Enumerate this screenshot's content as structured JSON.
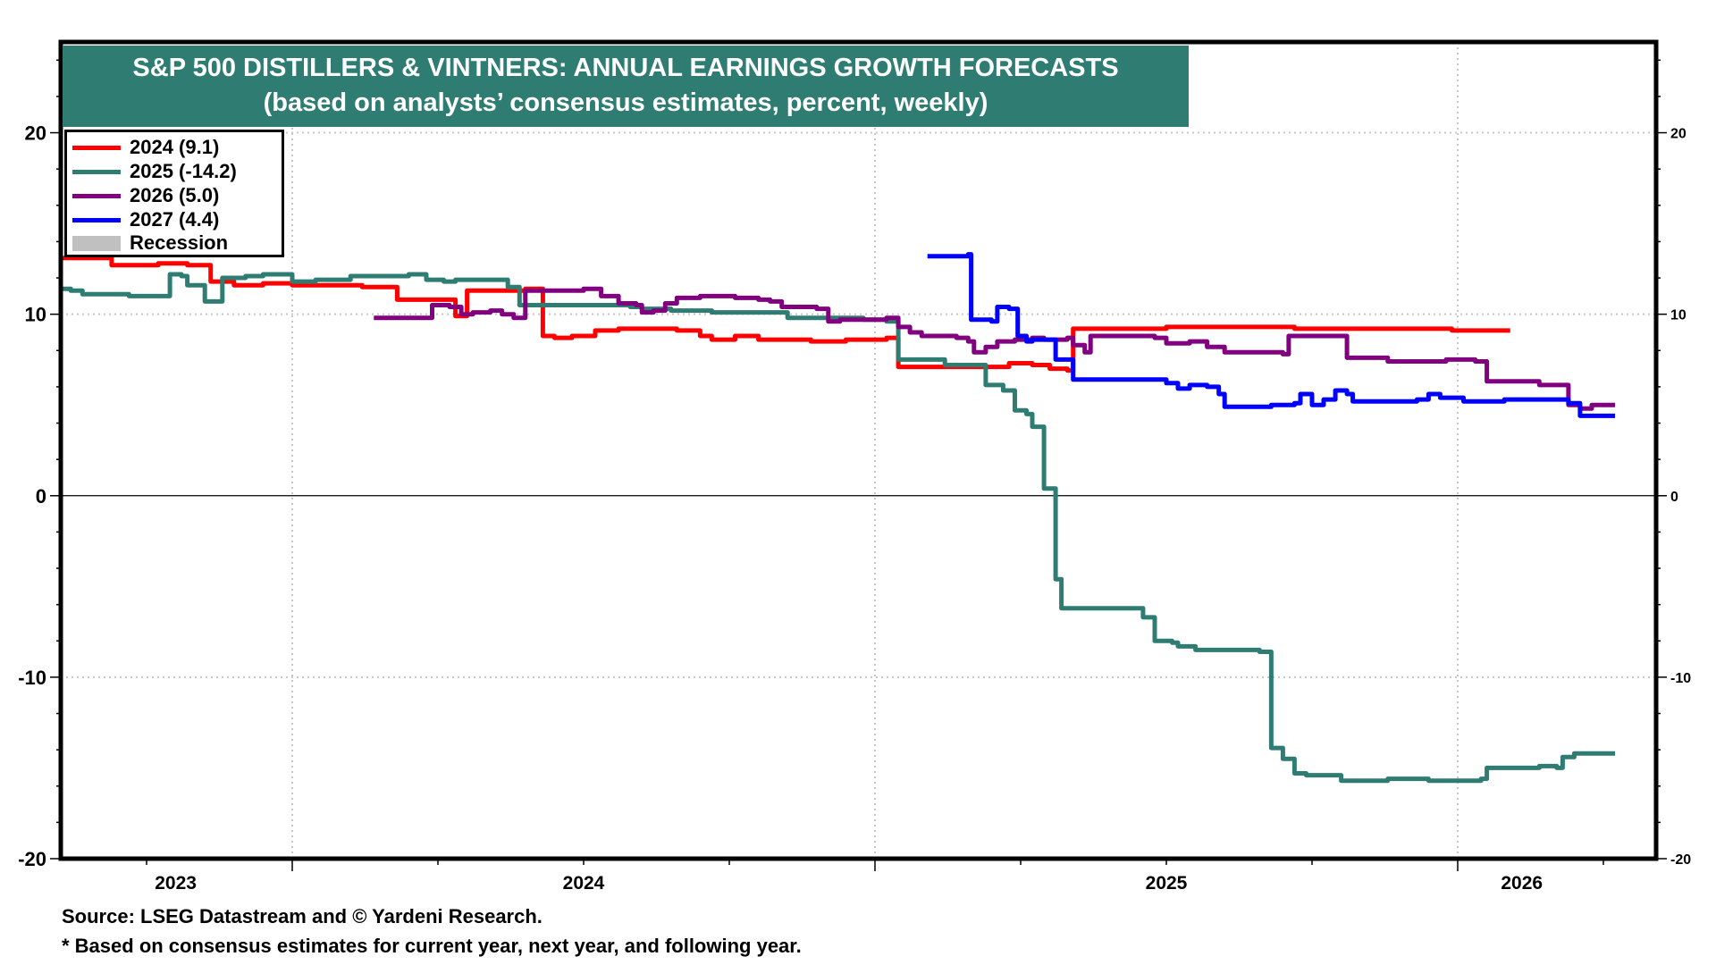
{
  "chart_data": {
    "type": "line",
    "title": "S&P 500 DISTILLERS & VINTNERS: ANNUAL EARNINGS GROWTH FORECASTS",
    "subtitle": "(based on analysts’ consensus estimates, percent, weekly)",
    "xlabel": "",
    "ylabel": "",
    "x_units": "year (decimal)",
    "xlim": [
      2023.6,
      2026.35
    ],
    "ylim": [
      -20,
      25
    ],
    "y_ticks": [
      -20,
      -10,
      0,
      10,
      20
    ],
    "y_minor_step": 2,
    "x_tick_labels": [
      "2023",
      "2024",
      "2025",
      "2026"
    ],
    "x_label_positions": [
      2023.8,
      2024.5,
      2025.5,
      2026.11
    ],
    "x_major_gridlines": [
      2024.0,
      2025.0,
      2026.0
    ],
    "x_minor_ticks": [
      2023.75,
      2024.25,
      2024.5,
      2024.75,
      2025.25,
      2025.5,
      2025.75,
      2026.25
    ],
    "grid": true,
    "zero_line": true,
    "legend_position": "top-left",
    "legend": [
      {
        "label": "2024 (9.1)",
        "color": "#ff0000",
        "kind": "line"
      },
      {
        "label": "2025 (-14.2)",
        "color": "#2f7d72",
        "kind": "line"
      },
      {
        "label": "2026 (5.0)",
        "color": "#800080",
        "kind": "line"
      },
      {
        "label": "2027 (4.4)",
        "color": "#0000ff",
        "kind": "line"
      },
      {
        "label": "Recession",
        "color": "#c0c0c0",
        "kind": "rect"
      }
    ],
    "series": [
      {
        "name": "2024",
        "color": "#ff0000",
        "last_value": 9.1,
        "points": [
          [
            2023.6,
            13.1
          ],
          [
            2023.68,
            13.1
          ],
          [
            2023.69,
            12.7
          ],
          [
            2023.75,
            12.7
          ],
          [
            2023.77,
            12.8
          ],
          [
            2023.82,
            12.7
          ],
          [
            2023.86,
            11.8
          ],
          [
            2023.9,
            11.6
          ],
          [
            2023.95,
            11.7
          ],
          [
            2024.0,
            11.6
          ],
          [
            2024.06,
            11.6
          ],
          [
            2024.12,
            11.5
          ],
          [
            2024.18,
            10.8
          ],
          [
            2024.27,
            10.8
          ],
          [
            2024.28,
            9.9
          ],
          [
            2024.295,
            9.9
          ],
          [
            2024.3,
            11.3
          ],
          [
            2024.4,
            11.4
          ],
          [
            2024.43,
            8.8
          ],
          [
            2024.45,
            8.7
          ],
          [
            2024.48,
            8.8
          ],
          [
            2024.52,
            9.1
          ],
          [
            2024.56,
            9.2
          ],
          [
            2024.66,
            9.1
          ],
          [
            2024.7,
            8.8
          ],
          [
            2024.72,
            8.6
          ],
          [
            2024.76,
            8.8
          ],
          [
            2024.8,
            8.6
          ],
          [
            2024.85,
            8.6
          ],
          [
            2024.89,
            8.5
          ],
          [
            2024.95,
            8.6
          ],
          [
            2025.02,
            8.7
          ],
          [
            2025.04,
            7.1
          ],
          [
            2025.1,
            7.1
          ],
          [
            2025.18,
            7.1
          ],
          [
            2025.22,
            7.1
          ],
          [
            2025.23,
            7.3
          ],
          [
            2025.27,
            7.2
          ],
          [
            2025.3,
            7.0
          ],
          [
            2025.33,
            6.9
          ],
          [
            2025.34,
            9.2
          ],
          [
            2025.5,
            9.3
          ],
          [
            2025.71,
            9.3
          ],
          [
            2025.72,
            9.2
          ],
          [
            2025.98,
            9.2
          ],
          [
            2025.99,
            9.1
          ],
          [
            2026.09,
            9.1
          ]
        ]
      },
      {
        "name": "2025",
        "color": "#2f7d72",
        "last_value": -14.2,
        "points": [
          [
            2023.6,
            11.4
          ],
          [
            2023.62,
            11.3
          ],
          [
            2023.64,
            11.1
          ],
          [
            2023.7,
            11.1
          ],
          [
            2023.72,
            11.0
          ],
          [
            2023.78,
            11.0
          ],
          [
            2023.79,
            12.2
          ],
          [
            2023.81,
            12.1
          ],
          [
            2023.82,
            11.6
          ],
          [
            2023.84,
            11.6
          ],
          [
            2023.85,
            10.7
          ],
          [
            2023.87,
            10.7
          ],
          [
            2023.88,
            12.0
          ],
          [
            2023.92,
            12.1
          ],
          [
            2023.95,
            12.2
          ],
          [
            2023.99,
            12.2
          ],
          [
            2024.0,
            11.8
          ],
          [
            2024.04,
            11.9
          ],
          [
            2024.08,
            11.9
          ],
          [
            2024.1,
            12.1
          ],
          [
            2024.14,
            12.1
          ],
          [
            2024.2,
            12.2
          ],
          [
            2024.23,
            11.9
          ],
          [
            2024.26,
            11.8
          ],
          [
            2024.28,
            11.9
          ],
          [
            2024.34,
            11.9
          ],
          [
            2024.37,
            11.5
          ],
          [
            2024.39,
            10.5
          ],
          [
            2024.44,
            10.5
          ],
          [
            2024.5,
            10.5
          ],
          [
            2024.58,
            10.4
          ],
          [
            2024.6,
            10.3
          ],
          [
            2024.65,
            10.2
          ],
          [
            2024.72,
            10.1
          ],
          [
            2024.8,
            10.1
          ],
          [
            2024.85,
            9.8
          ],
          [
            2024.9,
            9.8
          ],
          [
            2024.98,
            9.7
          ],
          [
            2025.02,
            9.6
          ],
          [
            2025.04,
            7.5
          ],
          [
            2025.1,
            7.5
          ],
          [
            2025.12,
            7.2
          ],
          [
            2025.18,
            7.2
          ],
          [
            2025.19,
            6.1
          ],
          [
            2025.22,
            5.8
          ],
          [
            2025.24,
            4.7
          ],
          [
            2025.26,
            4.5
          ],
          [
            2025.27,
            3.8
          ],
          [
            2025.29,
            0.4
          ],
          [
            2025.31,
            -4.6
          ],
          [
            2025.32,
            -6.2
          ],
          [
            2025.4,
            -6.2
          ],
          [
            2025.45,
            -6.2
          ],
          [
            2025.46,
            -6.7
          ],
          [
            2025.48,
            -8.0
          ],
          [
            2025.51,
            -8.1
          ],
          [
            2025.52,
            -8.3
          ],
          [
            2025.55,
            -8.5
          ],
          [
            2025.6,
            -8.5
          ],
          [
            2025.66,
            -8.6
          ],
          [
            2025.67,
            -8.6
          ],
          [
            2025.68,
            -13.9
          ],
          [
            2025.7,
            -14.5
          ],
          [
            2025.72,
            -15.3
          ],
          [
            2025.74,
            -15.4
          ],
          [
            2025.8,
            -15.7
          ],
          [
            2025.88,
            -15.6
          ],
          [
            2025.95,
            -15.7
          ],
          [
            2026.0,
            -15.7
          ],
          [
            2026.04,
            -15.6
          ],
          [
            2026.05,
            -15.0
          ],
          [
            2026.12,
            -15.0
          ],
          [
            2026.14,
            -14.9
          ],
          [
            2026.17,
            -15.0
          ],
          [
            2026.18,
            -14.4
          ],
          [
            2026.2,
            -14.2
          ],
          [
            2026.27,
            -14.2
          ]
        ]
      },
      {
        "name": "2026",
        "color": "#800080",
        "last_value": 5.0,
        "points": [
          [
            2024.14,
            9.8
          ],
          [
            2024.22,
            9.8
          ],
          [
            2024.24,
            10.5
          ],
          [
            2024.27,
            10.4
          ],
          [
            2024.29,
            10.0
          ],
          [
            2024.31,
            10.1
          ],
          [
            2024.34,
            10.2
          ],
          [
            2024.36,
            10.0
          ],
          [
            2024.38,
            9.8
          ],
          [
            2024.4,
            11.3
          ],
          [
            2024.46,
            11.3
          ],
          [
            2024.5,
            11.4
          ],
          [
            2024.53,
            11.0
          ],
          [
            2024.56,
            10.6
          ],
          [
            2024.59,
            10.5
          ],
          [
            2024.6,
            10.1
          ],
          [
            2024.62,
            10.2
          ],
          [
            2024.64,
            10.6
          ],
          [
            2024.66,
            10.9
          ],
          [
            2024.7,
            11.0
          ],
          [
            2024.76,
            10.9
          ],
          [
            2024.8,
            10.8
          ],
          [
            2024.82,
            10.7
          ],
          [
            2024.84,
            10.4
          ],
          [
            2024.9,
            10.3
          ],
          [
            2024.92,
            9.6
          ],
          [
            2024.94,
            9.7
          ],
          [
            2024.98,
            9.7
          ],
          [
            2025.02,
            9.8
          ],
          [
            2025.04,
            9.3
          ],
          [
            2025.06,
            9.0
          ],
          [
            2025.08,
            8.8
          ],
          [
            2025.14,
            8.7
          ],
          [
            2025.16,
            8.5
          ],
          [
            2025.17,
            7.9
          ],
          [
            2025.19,
            8.2
          ],
          [
            2025.21,
            8.5
          ],
          [
            2025.24,
            8.6
          ],
          [
            2025.27,
            8.7
          ],
          [
            2025.29,
            8.6
          ],
          [
            2025.33,
            8.7
          ],
          [
            2025.34,
            8.3
          ],
          [
            2025.36,
            7.9
          ],
          [
            2025.37,
            8.8
          ],
          [
            2025.46,
            8.8
          ],
          [
            2025.48,
            8.7
          ],
          [
            2025.5,
            8.4
          ],
          [
            2025.54,
            8.5
          ],
          [
            2025.57,
            8.2
          ],
          [
            2025.6,
            7.9
          ],
          [
            2025.66,
            7.9
          ],
          [
            2025.7,
            7.8
          ],
          [
            2025.71,
            8.8
          ],
          [
            2025.8,
            8.8
          ],
          [
            2025.81,
            7.6
          ],
          [
            2025.86,
            7.6
          ],
          [
            2025.88,
            7.4
          ],
          [
            2025.96,
            7.4
          ],
          [
            2025.98,
            7.5
          ],
          [
            2026.03,
            7.4
          ],
          [
            2026.05,
            6.3
          ],
          [
            2026.12,
            6.3
          ],
          [
            2026.14,
            6.1
          ],
          [
            2026.18,
            6.1
          ],
          [
            2026.19,
            5.0
          ],
          [
            2026.21,
            4.8
          ],
          [
            2026.23,
            5.0
          ],
          [
            2026.27,
            5.0
          ]
        ]
      },
      {
        "name": "2027",
        "color": "#0000ff",
        "last_value": 4.4,
        "points": [
          [
            2025.09,
            13.2
          ],
          [
            2025.14,
            13.2
          ],
          [
            2025.16,
            13.3
          ],
          [
            2025.165,
            9.7
          ],
          [
            2025.2,
            9.6
          ],
          [
            2025.21,
            10.4
          ],
          [
            2025.23,
            10.3
          ],
          [
            2025.245,
            8.8
          ],
          [
            2025.26,
            8.5
          ],
          [
            2025.27,
            8.6
          ],
          [
            2025.3,
            8.6
          ],
          [
            2025.31,
            7.5
          ],
          [
            2025.335,
            7.5
          ],
          [
            2025.34,
            6.4
          ],
          [
            2025.46,
            6.4
          ],
          [
            2025.5,
            6.2
          ],
          [
            2025.52,
            5.9
          ],
          [
            2025.54,
            6.1
          ],
          [
            2025.57,
            6.0
          ],
          [
            2025.59,
            5.6
          ],
          [
            2025.6,
            4.9
          ],
          [
            2025.66,
            4.9
          ],
          [
            2025.68,
            5.0
          ],
          [
            2025.72,
            5.1
          ],
          [
            2025.73,
            5.6
          ],
          [
            2025.75,
            5.0
          ],
          [
            2025.77,
            5.3
          ],
          [
            2025.79,
            5.8
          ],
          [
            2025.81,
            5.6
          ],
          [
            2025.82,
            5.2
          ],
          [
            2025.89,
            5.2
          ],
          [
            2025.93,
            5.3
          ],
          [
            2025.95,
            5.6
          ],
          [
            2025.97,
            5.4
          ],
          [
            2026.01,
            5.2
          ],
          [
            2026.06,
            5.2
          ],
          [
            2026.08,
            5.3
          ],
          [
            2026.17,
            5.3
          ],
          [
            2026.19,
            5.1
          ],
          [
            2026.21,
            4.4
          ],
          [
            2026.27,
            4.4
          ]
        ]
      }
    ]
  },
  "header": {
    "title": "S&P 500 DISTILLERS & VINTNERS: ANNUAL EARNINGS GROWTH FORECASTS",
    "subtitle": "(based on analysts’ consensus estimates, percent, weekly)",
    "title_bg": "#2f7d72"
  },
  "legend": {
    "items": [
      {
        "label": "2024 (9.1)",
        "color": "#ff0000"
      },
      {
        "label": "2025 (-14.2)",
        "color": "#2f7d72"
      },
      {
        "label": "2026 (5.0)",
        "color": "#800080"
      },
      {
        "label": "2027 (4.4)",
        "color": "#0000ff"
      },
      {
        "label": "Recession",
        "color": "#c0c0c0"
      }
    ]
  },
  "footer": {
    "source": "Source: LSEG Datastream and © Yardeni Research.",
    "note": "* Based on consensus estimates for current year, next year, and following year."
  }
}
